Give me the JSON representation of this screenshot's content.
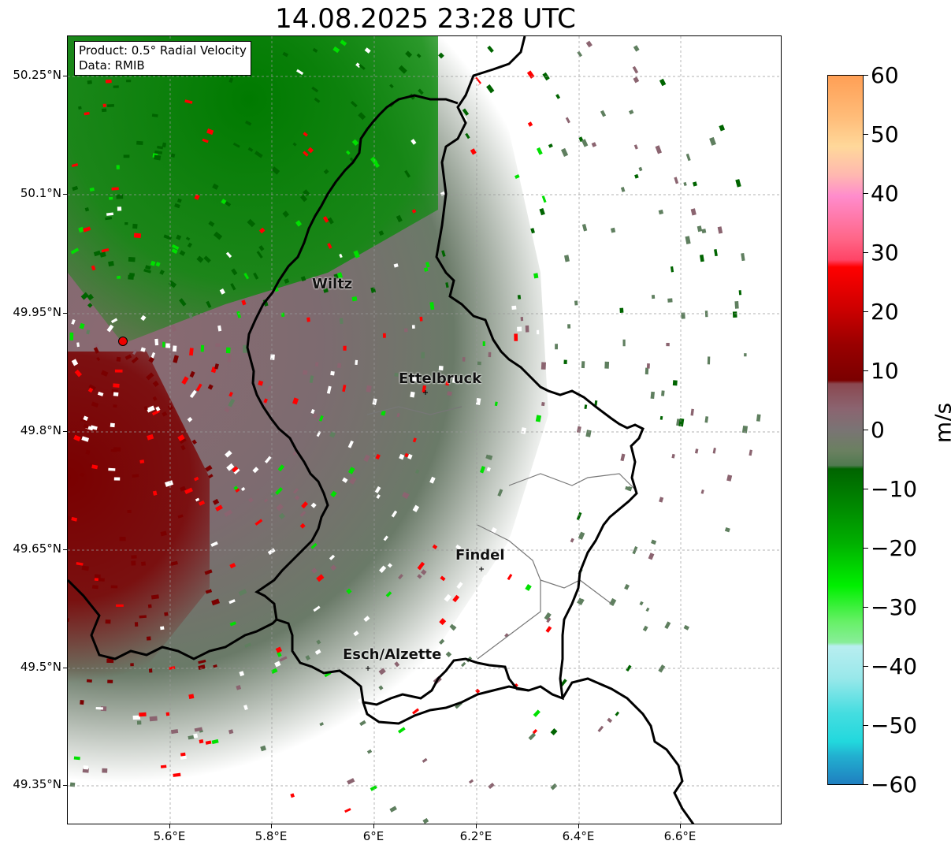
{
  "title": "14.08.2025 23:28 UTC",
  "info": {
    "product": "Product: 0.5° Radial Velocity",
    "data": "Data: RMIB"
  },
  "map": {
    "lon_range": [
      5.4,
      6.8
    ],
    "lat_range": [
      49.3,
      50.3
    ],
    "grid": true,
    "radar_site": {
      "lon": 5.505,
      "lat": 49.914
    },
    "lat_ticks": [
      "50.25°N",
      "50.1°N",
      "49.95°N",
      "49.8°N",
      "49.65°N",
      "49.5°N",
      "49.35°N"
    ],
    "lon_ticks": [
      "5.6°E",
      "5.8°E",
      "6°E",
      "6.2°E",
      "6.4°E",
      "6.6°E"
    ],
    "cities": [
      {
        "name": "Wiltz",
        "lon": 5.93,
        "lat": 49.97
      },
      {
        "name": "Ettelbruck",
        "lon": 6.1,
        "lat": 49.85
      },
      {
        "name": "Findel",
        "lon": 6.21,
        "lat": 49.63
      },
      {
        "name": "Esch/Alzette",
        "lon": 5.99,
        "lat": 49.5
      }
    ]
  },
  "colorbar": {
    "unit": "m/s",
    "min": -60,
    "max": 60,
    "tick_labels": [
      "60",
      "50",
      "40",
      "30",
      "20",
      "10",
      "0",
      "−10",
      "−20",
      "−30",
      "−40",
      "−50",
      "−60"
    ],
    "colors": {
      "orange": "#ff9f55",
      "peach": "#ffd89a",
      "pink": "#ff8ccc",
      "red": "#ff0000",
      "darkred": "#7a0000",
      "mauve": "#8b6470",
      "gray_green": "#5f7f5f",
      "darkgreen": "#006400",
      "green": "#00e000",
      "lightgreen": "#88ee99",
      "lightcyan": "#b8eef0",
      "cyan": "#22d8dd",
      "blue": "#1f7fc0"
    }
  }
}
